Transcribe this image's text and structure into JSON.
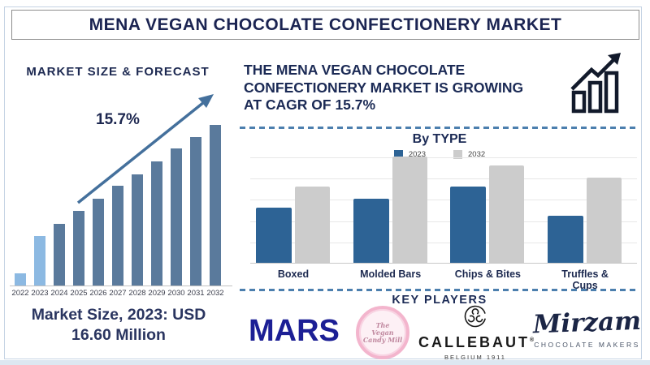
{
  "title": "MENA VEGAN CHOCOLATE CONFECTIONERY MARKET",
  "colors": {
    "navy": "#1b2a55",
    "bar_dark": "#5a7a9c",
    "bar_light": "#8cb9e2",
    "blue_2023": "#2d6395",
    "gray_2032": "#cccccc",
    "dashed_line": "#4c7fae",
    "arrow": "#44709c",
    "mars_blue": "#1c1f95",
    "vegan_pink": "#f3b5cd"
  },
  "left_panel": {
    "heading": "MARKET SIZE & FORECAST",
    "cagr_label": "15.7%",
    "market_size_line1": "Market Size, 2023: USD",
    "market_size_line2": "16.60 Million"
  },
  "right_panel": {
    "headline_lines": [
      "THE MENA VEGAN CHOCOLATE",
      "CONFECTIONERY MARKET IS GROWING",
      "AT CAGR OF 15.7%"
    ],
    "by_type_heading": "By TYPE",
    "key_players_heading": "KEY PLAYERS",
    "key_players": {
      "mars": {
        "name": "MARS"
      },
      "vegan_candy": {
        "logo_lines": [
          "The",
          "Vegan",
          "Candy Mill"
        ]
      },
      "callebaut": {
        "name": "CALLEBAUT",
        "mark": "®",
        "sub": "BELGIUM 1911"
      },
      "mirzam": {
        "name": "Mirzam",
        "sub": "CHOCOLATE MAKERS"
      }
    }
  },
  "chart_data": [
    {
      "type": "bar",
      "title": "MARKET SIZE & FORECAST",
      "categories": [
        "2022",
        "2023",
        "2024",
        "2025",
        "2026",
        "2027",
        "2028",
        "2029",
        "2030",
        "2031",
        "2032"
      ],
      "values": [
        15,
        61,
        76,
        92,
        107,
        123,
        137,
        153,
        169,
        183,
        198
      ],
      "units": "relative bar height (no axis shown)",
      "highlight_indices": [
        0,
        1
      ],
      "annotation": "15.7% CAGR trend arrow",
      "known_point": {
        "year": "2023",
        "value_usd_million": 16.6
      },
      "grid": false,
      "legend": false
    },
    {
      "type": "bar",
      "title": "By TYPE",
      "categories": [
        "Boxed",
        "Molded Bars",
        "Chips & Bites",
        "Truffles & Cups"
      ],
      "series": [
        {
          "name": "2023",
          "color": "#2d6395",
          "values": [
            68,
            79,
            94,
            58
          ]
        },
        {
          "name": "2032",
          "color": "#cccccc",
          "values": [
            94,
            131,
            120,
            105
          ]
        }
      ],
      "units": "relative bar height (no axis shown)",
      "grid": true,
      "legend_position": "top-center"
    }
  ]
}
